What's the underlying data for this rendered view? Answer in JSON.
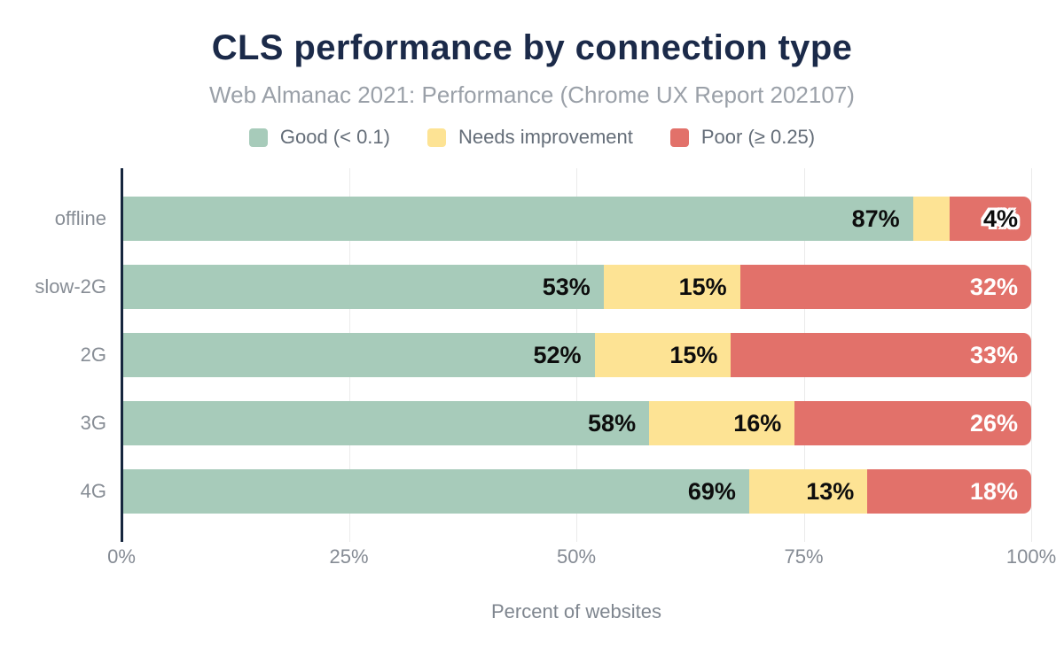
{
  "title": "CLS performance by connection type",
  "subtitle": "Web Almanac 2021: Performance (Chrome UX Report 202107)",
  "legend": [
    {
      "label": "Good (< 0.1)",
      "color": "#a7cbba"
    },
    {
      "label": "Needs improvement",
      "color": "#fde394"
    },
    {
      "label": "Poor (≥ 0.25)",
      "color": "#e2716a"
    }
  ],
  "colors": {
    "good": "#a7cbba",
    "needs_improvement": "#fde394",
    "poor": "#e2716a",
    "title": "#1b2a49",
    "subtitle": "#9aa0a8",
    "axis_line": "#16263e",
    "gridline": "#ebebeb",
    "axis_text": "#858b94"
  },
  "x_axis": {
    "label": "Percent of websites",
    "ticks": [
      {
        "label": "0%",
        "value": 0
      },
      {
        "label": "25%",
        "value": 25
      },
      {
        "label": "50%",
        "value": 50
      },
      {
        "label": "75%",
        "value": 75
      },
      {
        "label": "100%",
        "value": 100
      }
    ]
  },
  "chart_data": {
    "type": "bar",
    "orientation": "horizontal",
    "stacked": true,
    "title": "CLS performance by connection type",
    "subtitle": "Web Almanac 2021: Performance (Chrome UX Report 202107)",
    "categories": [
      "offline",
      "slow-2G",
      "2G",
      "3G",
      "4G"
    ],
    "series": [
      {
        "name": "Good (< 0.1)",
        "color": "#a7cbba",
        "values": [
          87,
          53,
          52,
          58,
          69
        ]
      },
      {
        "name": "Needs improvement",
        "color": "#fde394",
        "values": [
          4,
          15,
          15,
          16,
          13
        ]
      },
      {
        "name": "Poor (≥ 0.25)",
        "color": "#e2716a",
        "values": [
          9,
          32,
          33,
          26,
          18
        ]
      }
    ],
    "xlim": [
      0,
      100
    ],
    "xlabel": "Percent of websites",
    "x_tick_labels": [
      "0%",
      "25%",
      "50%",
      "75%",
      "100%"
    ],
    "legend_position": "top",
    "grid": "vertical",
    "note": "offline row: the 4% needs-improvement label is drawn at the bar end with a white halo; the 9% poor segment is unlabeled"
  },
  "rows": [
    {
      "category": "offline",
      "segments": [
        {
          "value": 87,
          "color": "good",
          "label": "87%",
          "label_style": "dark"
        },
        {
          "value": 4,
          "color": "needs_improvement",
          "label": "",
          "label_style": ""
        },
        {
          "value": 9,
          "color": "poor",
          "label": "4%",
          "label_style": "halo"
        }
      ]
    },
    {
      "category": "slow-2G",
      "segments": [
        {
          "value": 53,
          "color": "good",
          "label": "53%",
          "label_style": "dark"
        },
        {
          "value": 15,
          "color": "needs_improvement",
          "label": "15%",
          "label_style": "dark"
        },
        {
          "value": 32,
          "color": "poor",
          "label": "32%",
          "label_style": "light"
        }
      ]
    },
    {
      "category": "2G",
      "segments": [
        {
          "value": 52,
          "color": "good",
          "label": "52%",
          "label_style": "dark"
        },
        {
          "value": 15,
          "color": "needs_improvement",
          "label": "15%",
          "label_style": "dark"
        },
        {
          "value": 33,
          "color": "poor",
          "label": "33%",
          "label_style": "light"
        }
      ]
    },
    {
      "category": "3G",
      "segments": [
        {
          "value": 58,
          "color": "good",
          "label": "58%",
          "label_style": "dark"
        },
        {
          "value": 16,
          "color": "needs_improvement",
          "label": "16%",
          "label_style": "dark"
        },
        {
          "value": 26,
          "color": "poor",
          "label": "26%",
          "label_style": "light"
        }
      ]
    },
    {
      "category": "4G",
      "segments": [
        {
          "value": 69,
          "color": "good",
          "label": "69%",
          "label_style": "dark"
        },
        {
          "value": 13,
          "color": "needs_improvement",
          "label": "13%",
          "label_style": "dark"
        },
        {
          "value": 18,
          "color": "poor",
          "label": "18%",
          "label_style": "light"
        }
      ]
    }
  ]
}
